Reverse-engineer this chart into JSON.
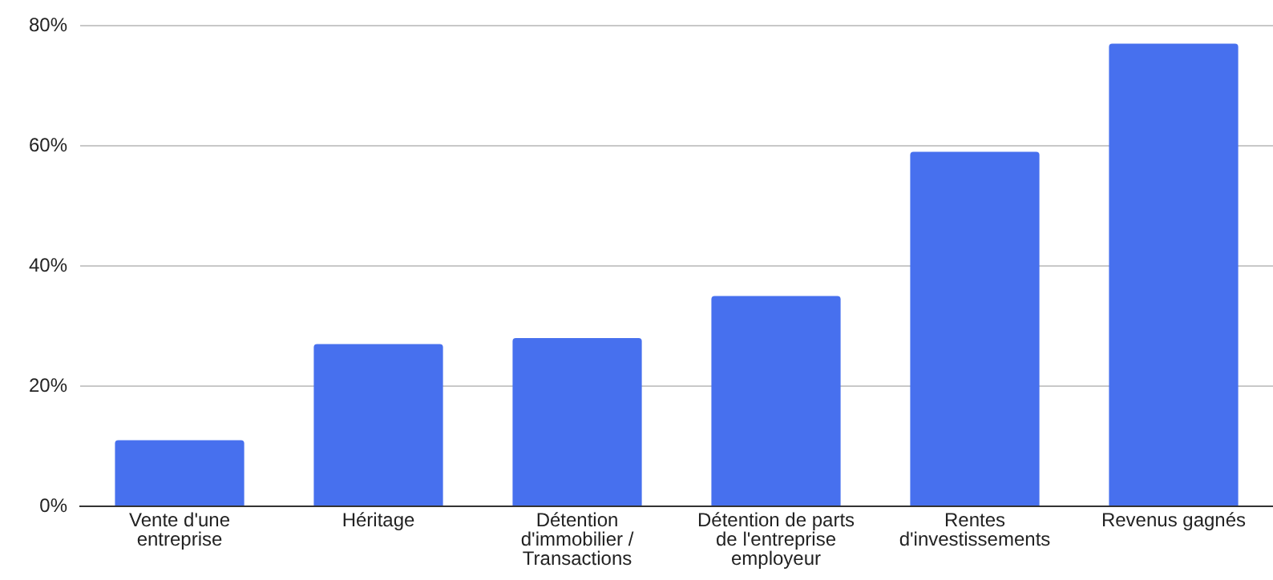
{
  "chart_data": {
    "type": "bar",
    "categories": [
      "Vente d'une entreprise",
      "Héritage",
      "Détention d'immobilier / Transactions",
      "Détention de parts de l'entreprise employeur",
      "Rentes d'investissements",
      "Revenus gagnés"
    ],
    "values": [
      11,
      27,
      28,
      35,
      59,
      77
    ],
    "color": "#4770ee",
    "ylim": [
      0,
      80
    ],
    "yticks": [
      {
        "value": 0,
        "label": "0%"
      },
      {
        "value": 20,
        "label": "20%"
      },
      {
        "value": 40,
        "label": "40%"
      },
      {
        "value": 60,
        "label": "60%"
      },
      {
        "value": 80,
        "label": "80%"
      }
    ],
    "grid": "y"
  }
}
